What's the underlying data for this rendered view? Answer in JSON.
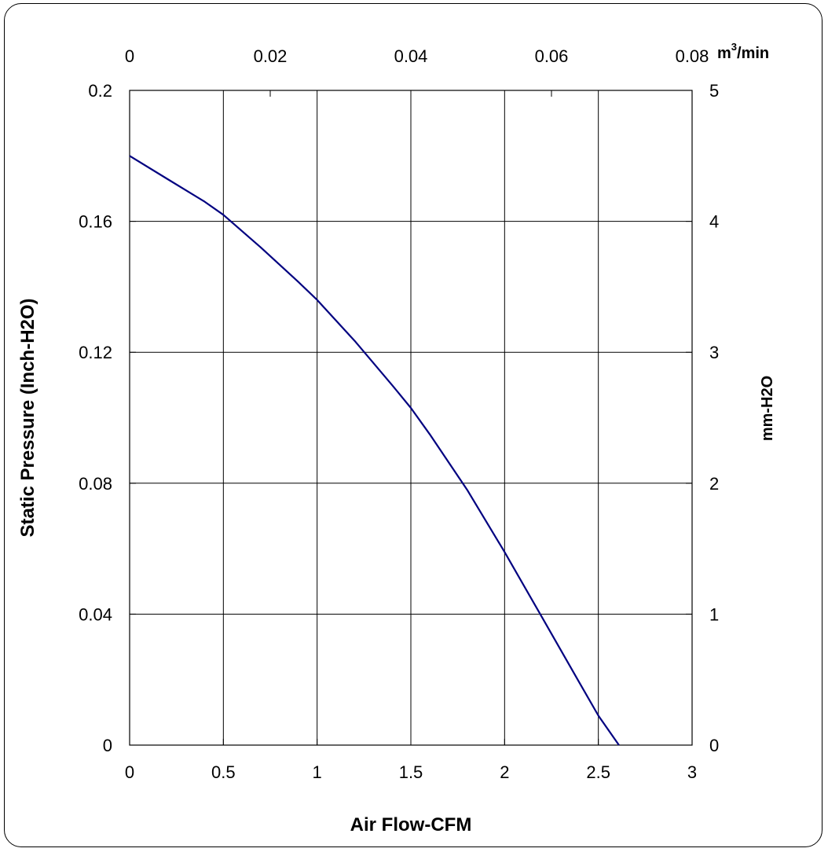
{
  "chart_data": {
    "type": "line",
    "xlabel": "Air Flow-CFM",
    "ylabel": "Static Pressure (Inch-H2O)",
    "y2label": "mm-H2O",
    "x2unit": "m",
    "x2unit_sup": "3",
    "x2unit_tail": "/min",
    "xlim": [
      0,
      3
    ],
    "ylim": [
      0,
      0.2
    ],
    "x2lim": [
      0,
      0.08
    ],
    "y2lim": [
      0,
      5
    ],
    "x_ticks": [
      "0",
      "0.5",
      "1",
      "1.5",
      "2",
      "2.5",
      "3"
    ],
    "y_ticks": [
      "0",
      "0.04",
      "0.08",
      "0.12",
      "0.16",
      "0.2"
    ],
    "x2_ticks": [
      "0",
      "0.02",
      "0.04",
      "0.06",
      "0.08"
    ],
    "y2_ticks": [
      "0",
      "1",
      "2",
      "3",
      "4",
      "5"
    ],
    "grid": true,
    "line_color": "#000080",
    "series": [
      {
        "x": [
          0,
          0.2,
          0.4,
          0.5,
          0.7,
          0.9,
          1.0,
          1.2,
          1.4,
          1.5,
          1.6,
          1.8,
          2.0,
          2.2,
          2.4,
          2.5,
          2.61
        ],
        "y": [
          0.18,
          0.173,
          0.166,
          0.162,
          0.152,
          0.1415,
          0.136,
          0.1235,
          0.11,
          0.103,
          0.095,
          0.078,
          0.059,
          0.039,
          0.019,
          0.009,
          0.0
        ]
      }
    ]
  }
}
